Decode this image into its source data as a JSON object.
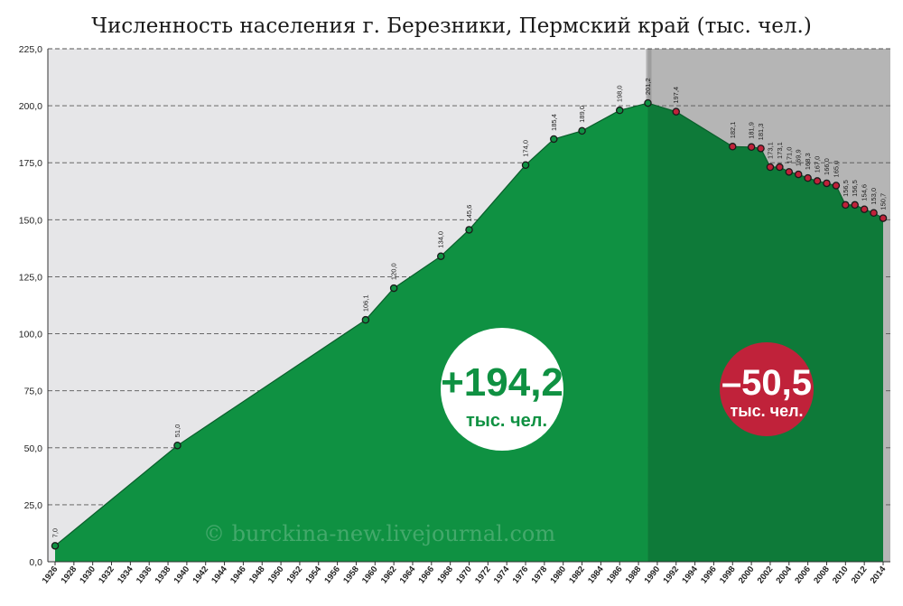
{
  "chart_data": {
    "type": "area",
    "title": "Численность населения г. Березники, Пермский край (тыс. чел.)",
    "xlim": [
      1926,
      2014
    ],
    "ylim": [
      0,
      225
    ],
    "grid": true,
    "y_ticks": [
      "0,0",
      "25,0",
      "50,0",
      "75,0",
      "100,0",
      "125,0",
      "150,0",
      "175,0",
      "200,0",
      "225,0"
    ],
    "x_ticks": [
      "1926",
      "1928",
      "1930",
      "1932",
      "1934",
      "1936",
      "1938",
      "1940",
      "1942",
      "1944",
      "1946",
      "1948",
      "1950",
      "1952",
      "1954",
      "1956",
      "1958",
      "1960",
      "1962",
      "1964",
      "1966",
      "1968",
      "1970",
      "1972",
      "1974",
      "1976",
      "1978",
      "1980",
      "1982",
      "1984",
      "1986",
      "1988",
      "1990",
      "1992",
      "1994",
      "1996",
      "1998",
      "2000",
      "2002",
      "2004",
      "2006",
      "2008",
      "2010",
      "2012",
      "2014"
    ],
    "split_year": 1989,
    "points": [
      {
        "x": 1926,
        "y": 7.0,
        "label": "7,0",
        "phase": "growth"
      },
      {
        "x": 1939,
        "y": 51.0,
        "label": "51,0",
        "phase": "growth"
      },
      {
        "x": 1959,
        "y": 106.1,
        "label": "106,1",
        "phase": "growth"
      },
      {
        "x": 1962,
        "y": 120.0,
        "label": "120,0",
        "phase": "growth"
      },
      {
        "x": 1967,
        "y": 134.0,
        "label": "134,0",
        "phase": "growth"
      },
      {
        "x": 1970,
        "y": 145.6,
        "label": "145,6",
        "phase": "growth"
      },
      {
        "x": 1976,
        "y": 174.0,
        "label": "174,0",
        "phase": "growth"
      },
      {
        "x": 1979,
        "y": 185.4,
        "label": "185,4",
        "phase": "growth"
      },
      {
        "x": 1982,
        "y": 189.0,
        "label": "189,0",
        "phase": "growth"
      },
      {
        "x": 1986,
        "y": 198.0,
        "label": "198,0",
        "phase": "growth"
      },
      {
        "x": 1989,
        "y": 201.2,
        "label": "201,2",
        "phase": "growth"
      },
      {
        "x": 1992,
        "y": 197.4,
        "label": "197,4",
        "phase": "decline"
      },
      {
        "x": 1998,
        "y": 182.1,
        "label": "182,1",
        "phase": "decline"
      },
      {
        "x": 2000,
        "y": 181.9,
        "label": "181,9",
        "phase": "decline"
      },
      {
        "x": 2001,
        "y": 181.3,
        "label": "181,3",
        "phase": "decline"
      },
      {
        "x": 2002,
        "y": 173.1,
        "label": "173,1",
        "phase": "decline"
      },
      {
        "x": 2003,
        "y": 173.1,
        "label": "173,1",
        "phase": "decline"
      },
      {
        "x": 2004,
        "y": 171.0,
        "label": "171,0",
        "phase": "decline"
      },
      {
        "x": 2005,
        "y": 169.9,
        "label": "169,9",
        "phase": "decline"
      },
      {
        "x": 2006,
        "y": 168.3,
        "label": "168,3",
        "phase": "decline"
      },
      {
        "x": 2007,
        "y": 167.0,
        "label": "167,0",
        "phase": "decline"
      },
      {
        "x": 2008,
        "y": 166.0,
        "label": "166,0",
        "phase": "decline"
      },
      {
        "x": 2009,
        "y": 165.0,
        "label": "165,0",
        "phase": "decline"
      },
      {
        "x": 2010,
        "y": 156.5,
        "label": "156,5",
        "phase": "decline"
      },
      {
        "x": 2011,
        "y": 156.5,
        "label": "156,5",
        "phase": "decline"
      },
      {
        "x": 2012,
        "y": 154.6,
        "label": "154,6",
        "phase": "decline"
      },
      {
        "x": 2013,
        "y": 153.0,
        "label": "153,0",
        "phase": "decline"
      },
      {
        "x": 2014,
        "y": 150.7,
        "label": "150,7",
        "phase": "decline"
      }
    ],
    "annotations": [
      {
        "value": "+194,2",
        "unit": "тыс. чел.",
        "style": "growth"
      },
      {
        "value": "–50,5",
        "unit": "тыс. чел.",
        "style": "decline"
      }
    ],
    "watermark": "© burckina-new.livejournal.com"
  },
  "colors": {
    "growth_fill": "#0f9142",
    "decline_fill": "#0e7a39",
    "growth_bg": "#e6e6e8",
    "decline_bg": "#b5b5b5",
    "decline_marker": "#c0223a",
    "growth_marker": "#0f9142",
    "badge_green_text": "#0f9142",
    "badge_red": "#c0223a"
  }
}
